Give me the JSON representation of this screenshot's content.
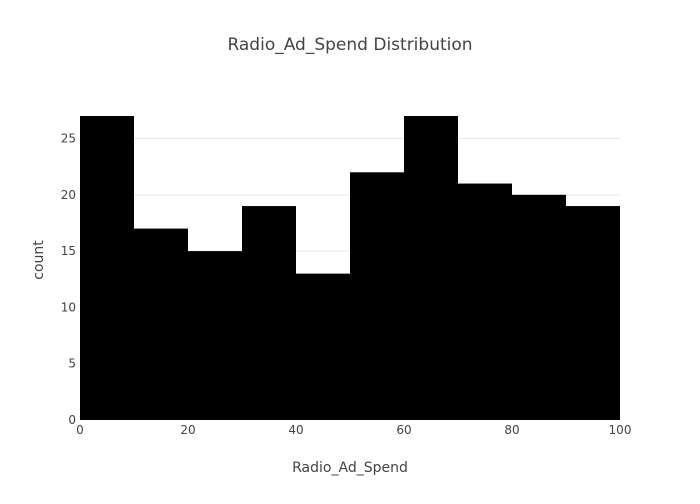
{
  "chart_data": {
    "type": "bar",
    "title": "Radio_Ad_Spend Distribution",
    "xlabel": "Radio_Ad_Spend",
    "ylabel": "count",
    "bins": [
      {
        "x0": 0,
        "x1": 10,
        "count": 27
      },
      {
        "x0": 10,
        "x1": 20,
        "count": 17
      },
      {
        "x0": 20,
        "x1": 30,
        "count": 15
      },
      {
        "x0": 30,
        "x1": 40,
        "count": 19
      },
      {
        "x0": 40,
        "x1": 50,
        "count": 13
      },
      {
        "x0": 50,
        "x1": 60,
        "count": 22
      },
      {
        "x0": 60,
        "x1": 70,
        "count": 27
      },
      {
        "x0": 70,
        "x1": 80,
        "count": 21
      },
      {
        "x0": 80,
        "x1": 90,
        "count": 20
      },
      {
        "x0": 90,
        "x1": 100,
        "count": 19
      }
    ],
    "xlim": [
      0,
      100
    ],
    "ylim": [
      0,
      27
    ],
    "xticks": [
      "0",
      "20",
      "40",
      "60",
      "80",
      "100"
    ],
    "yticks": [
      "0",
      "5",
      "10",
      "15",
      "20",
      "25"
    ],
    "grid": true,
    "bar_color": "#000000",
    "grid_color": "#e9e9e9",
    "text_color": "#444444"
  }
}
